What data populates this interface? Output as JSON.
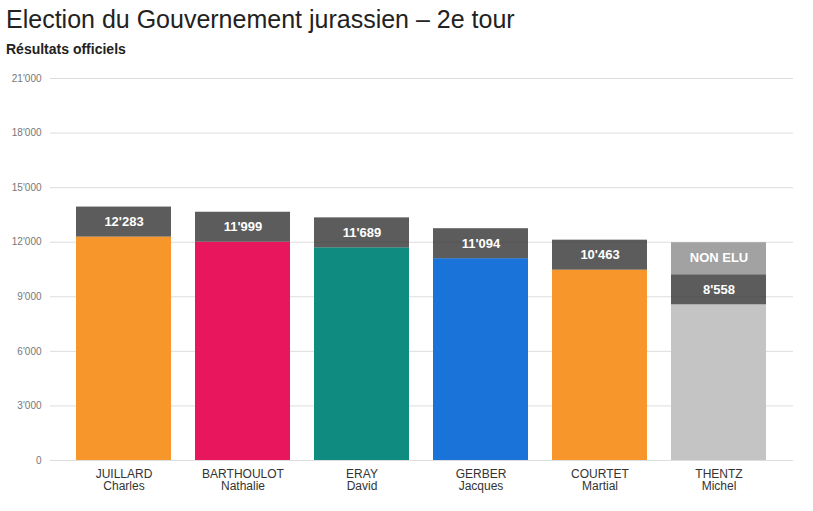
{
  "chart_data": {
    "type": "bar",
    "title": "Election du Gouvernement jurassien – 2e tour",
    "subtitle": "Résultats officiels",
    "categories": [
      "JUILLARD\nCharles",
      "BARTHOULOT\nNathalie",
      "ERAY\nDavid",
      "GERBER\nJacques",
      "COURTET\nMartial",
      "THENTZ\nMichel"
    ],
    "values": [
      12283,
      11999,
      11689,
      11094,
      10463,
      8558
    ],
    "value_labels": [
      "12'283",
      "11'999",
      "11'689",
      "11'094",
      "10'463",
      "8'558"
    ],
    "colors": [
      "#f7962b",
      "#e8175d",
      "#0f8b80",
      "#1a73d9",
      "#f7962b",
      "#c4c4c4"
    ],
    "annotations": [
      {
        "category": "THENTZ\nMichel",
        "text": "NON ELU"
      }
    ],
    "ylim": [
      0,
      21000
    ],
    "yticks": [
      0,
      {
        "value": 3000,
        "label": "3'000"
      },
      {
        "value": 6000,
        "label": "6'000"
      },
      {
        "value": 9000,
        "label": "9'000"
      },
      {
        "value": 12000,
        "label": "12'000"
      },
      {
        "value": 15000,
        "label": "15'000"
      },
      {
        "value": 18000,
        "label": "18'000"
      },
      {
        "value": 21000,
        "label": "21'000"
      }
    ],
    "grid": true,
    "data_labels": true
  }
}
